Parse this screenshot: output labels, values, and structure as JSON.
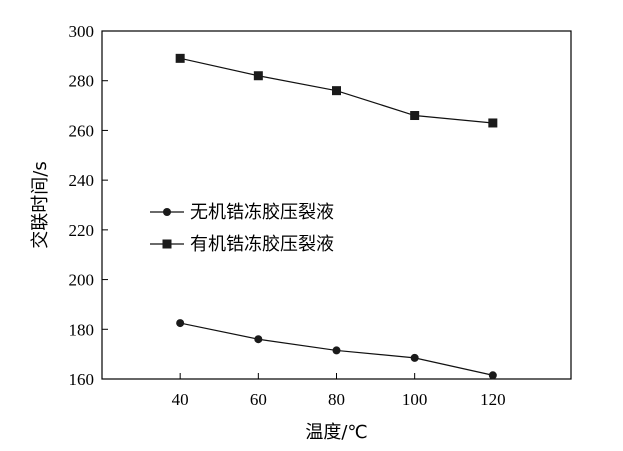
{
  "chart_data": {
    "type": "line",
    "title": "",
    "xlabel": "温度/℃",
    "ylabel": "交联时间/s",
    "xlim": [
      20,
      140
    ],
    "ylim": [
      160,
      300
    ],
    "xticks": [
      40,
      60,
      80,
      100,
      120
    ],
    "yticks": [
      160,
      180,
      200,
      220,
      240,
      260,
      280,
      300
    ],
    "grid": false,
    "legend_position": "center-left",
    "series": [
      {
        "name": "无机锆冻胶压裂液",
        "marker": "circle",
        "color": "#1a1a1a",
        "x": [
          40,
          60,
          80,
          100,
          120
        ],
        "y": [
          182.5,
          176,
          171.5,
          168.5,
          161.5
        ]
      },
      {
        "name": "有机锆冻胶压裂液",
        "marker": "square",
        "color": "#1a1a1a",
        "x": [
          40,
          60,
          80,
          100,
          120
        ],
        "y": [
          289,
          282,
          276,
          266,
          263
        ]
      }
    ]
  }
}
